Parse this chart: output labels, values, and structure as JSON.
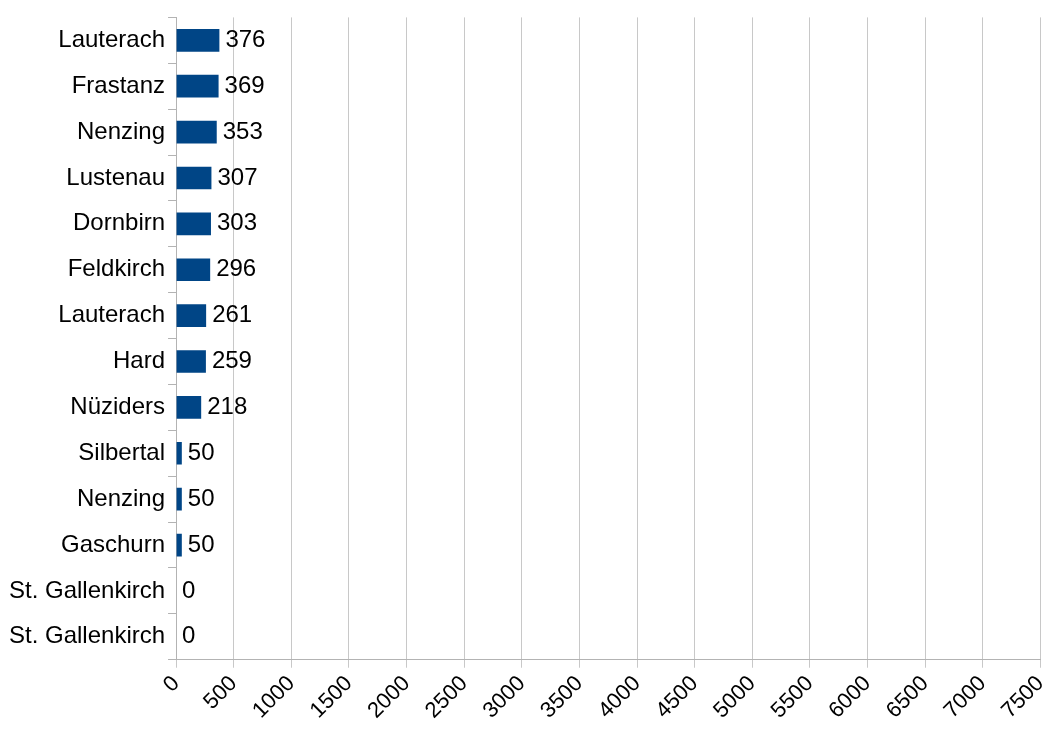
{
  "chart_data": {
    "type": "bar",
    "orientation": "horizontal",
    "categories": [
      "Lauterach",
      "Frastanz",
      "Nenzing",
      "Lustenau",
      "Dornbirn",
      "Feldkirch",
      "Lauterach",
      "Hard",
      "Nüziders",
      "Silbertal",
      "Nenzing",
      "Gaschurn",
      "St. Gallenkirch",
      "St. Gallenkirch"
    ],
    "values": [
      376,
      369,
      353,
      307,
      303,
      296,
      261,
      259,
      218,
      50,
      50,
      50,
      0,
      0
    ],
    "color": "#004586",
    "xlim": [
      0,
      7500
    ],
    "xticks": [
      0,
      500,
      1000,
      1500,
      2000,
      2500,
      3000,
      3500,
      4000,
      4500,
      5000,
      5500,
      6000,
      6500,
      7000,
      7500
    ],
    "grid": "x",
    "data_labels": true,
    "legend": false
  }
}
